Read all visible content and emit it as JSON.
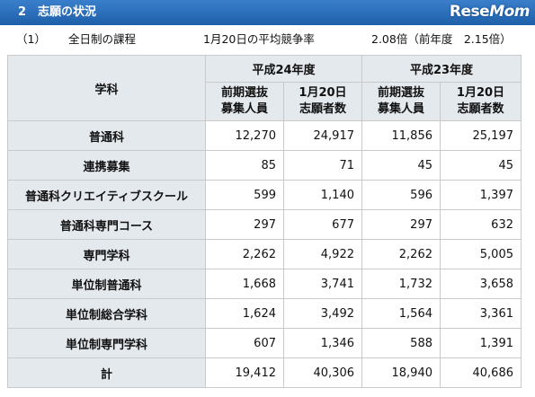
{
  "header": {
    "number": "2",
    "title": "志願の状況",
    "logo_a": "Rese",
    "logo_b": "Mom"
  },
  "subline": {
    "item_no": "（1）",
    "course": "全日制の課程",
    "date_label": "1月20日の平均競争率",
    "ratio": "2.08倍（前年度　2.15倍）"
  },
  "table": {
    "dept_header": "学科",
    "years": [
      "平成24年度",
      "平成23年度"
    ],
    "col_heads": [
      [
        "前期選抜",
        "募集人員"
      ],
      [
        "1月20日",
        "志願者数"
      ],
      [
        "前期選抜",
        "募集人員"
      ],
      [
        "1月20日",
        "志願者数"
      ]
    ],
    "rows": [
      {
        "label": "普通科",
        "values": [
          "12,270",
          "24,917",
          "11,856",
          "25,197"
        ]
      },
      {
        "label": "連携募集",
        "values": [
          "85",
          "71",
          "45",
          "45"
        ]
      },
      {
        "label": "普通科クリエイティブスクール",
        "values": [
          "599",
          "1,140",
          "596",
          "1,397"
        ]
      },
      {
        "label": "普通科専門コース",
        "values": [
          "297",
          "677",
          "297",
          "632"
        ]
      },
      {
        "label": "専門学科",
        "values": [
          "2,262",
          "4,922",
          "2,262",
          "5,005"
        ]
      },
      {
        "label": "単位制普通科",
        "values": [
          "1,668",
          "3,741",
          "1,732",
          "3,658"
        ]
      },
      {
        "label": "単位制総合学科",
        "values": [
          "1,624",
          "3,492",
          "1,564",
          "3,361"
        ]
      },
      {
        "label": "単位制専門学科",
        "values": [
          "607",
          "1,346",
          "588",
          "1,391"
        ]
      },
      {
        "label": "計",
        "values": [
          "19,412",
          "40,306",
          "18,940",
          "40,686"
        ]
      }
    ]
  }
}
